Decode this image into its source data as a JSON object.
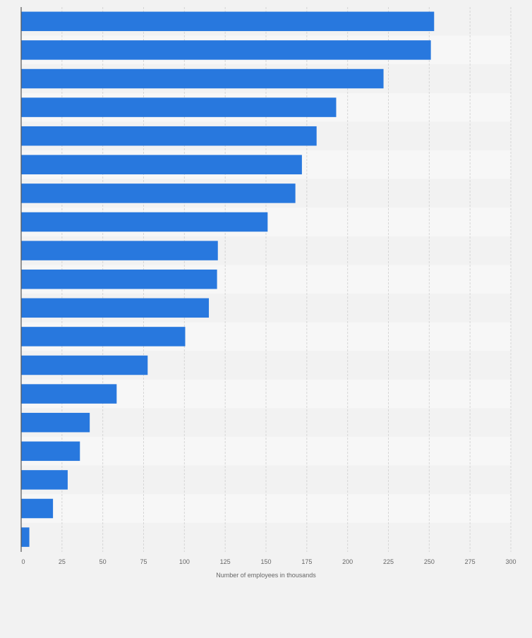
{
  "chart_data": {
    "type": "bar",
    "orientation": "horizontal",
    "title": "",
    "xlabel": "Number of employees in thousands",
    "ylabel": "",
    "xlim": [
      0,
      300
    ],
    "ticks": [
      "0",
      "25",
      "50",
      "75",
      "100",
      "125",
      "150",
      "175",
      "200",
      "225",
      "250",
      "275",
      "300"
    ],
    "tick_values": [
      0,
      25,
      50,
      75,
      100,
      125,
      150,
      175,
      200,
      225,
      250,
      275,
      300
    ],
    "categories": [
      "",
      "",
      "",
      "",
      "",
      "",
      "",
      "",
      "",
      "",
      "",
      "",
      "",
      "",
      "",
      "",
      "",
      "",
      ""
    ],
    "values": [
      253,
      251,
      222,
      193,
      181,
      172,
      168,
      151,
      120.5,
      120,
      115,
      100.5,
      77.5,
      58.5,
      42,
      36,
      28.5,
      19.5,
      5
    ],
    "grid": true,
    "bar_color": "#2878de",
    "grid_color": "#d6d6d6",
    "axis_color": "#555555",
    "band_colors": [
      "#f2f2f2",
      "#f7f7f7"
    ]
  }
}
